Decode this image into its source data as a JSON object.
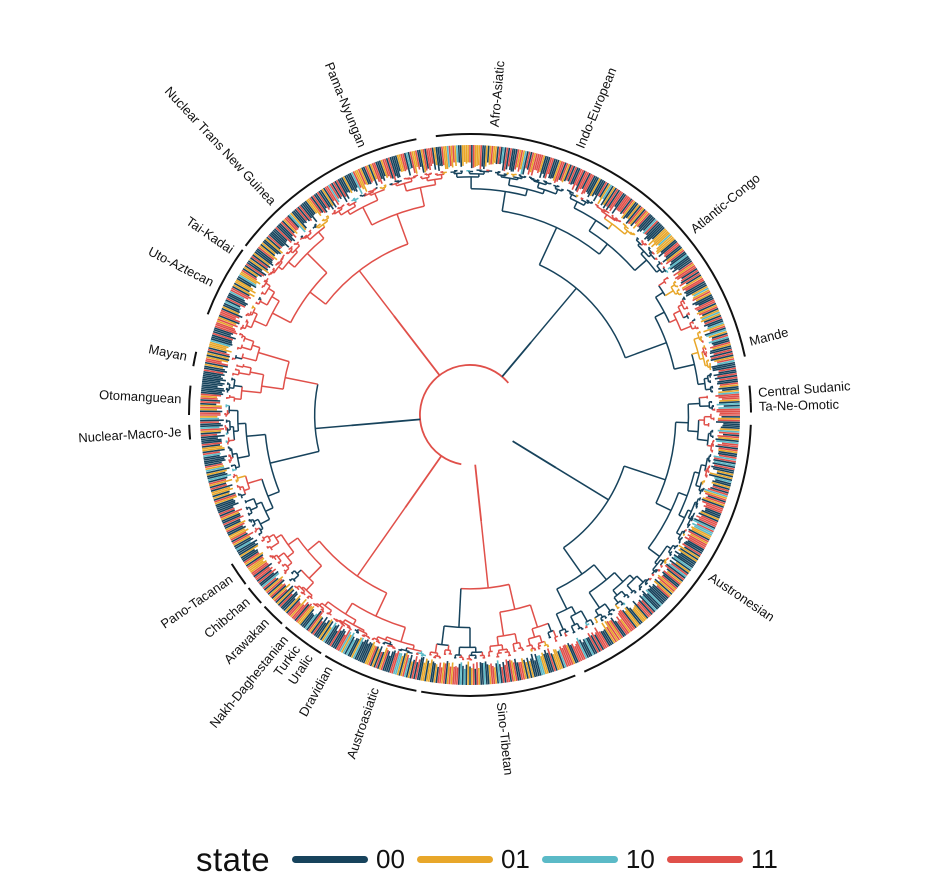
{
  "legend": {
    "title": "state",
    "items": [
      {
        "label": "00",
        "color": "#17435c"
      },
      {
        "label": "01",
        "color": "#e8a72a"
      },
      {
        "label": "10",
        "color": "#5bbac7"
      },
      {
        "label": "11",
        "color": "#e0504a"
      }
    ]
  },
  "families": [
    {
      "name": "Afro-Asiatic",
      "angle_start": 263,
      "angle_end": 287
    },
    {
      "name": "Indo-European",
      "angle_start": 287,
      "angle_end": 298
    },
    {
      "name": "Atlantic-Congo",
      "angle_start": 298,
      "angle_end": 343
    },
    {
      "name": "Mande",
      "angle_start": 343,
      "angle_end": 348
    },
    {
      "name": "Central Sudanic",
      "angle_start": 354,
      "angle_end": 357.5
    },
    {
      "name": "Ta-Ne-Omotic",
      "angle_start": 357.5,
      "angle_end": 359.5
    },
    {
      "name": "Austronesian",
      "angle_start": 2,
      "angle_end": 66
    },
    {
      "name": "Sino-Tibetan",
      "angle_start": 68,
      "angle_end": 100
    },
    {
      "name": "Austroasiatic",
      "angle_start": 101,
      "angle_end": 117
    },
    {
      "name": "Dravidian",
      "angle_start": 117,
      "angle_end": 121
    },
    {
      "name": "Uralic",
      "angle_start": 122,
      "angle_end": 125
    },
    {
      "name": "Turkic",
      "angle_start": 125,
      "angle_end": 128
    },
    {
      "name": "Nakh-Daghestanian",
      "angle_start": 128,
      "angle_end": 131
    },
    {
      "name": "Arawakan",
      "angle_start": 132,
      "angle_end": 137
    },
    {
      "name": "Chibchan",
      "angle_start": 138,
      "angle_end": 142
    },
    {
      "name": "Pano-Tacanan",
      "angle_start": 143,
      "angle_end": 148
    },
    {
      "name": "Nuclear-Macro-Je",
      "angle_start": 175,
      "angle_end": 178
    },
    {
      "name": "Otomanguean",
      "angle_start": 180,
      "angle_end": 186
    },
    {
      "name": "Mayan",
      "angle_start": 190,
      "angle_end": 193
    },
    {
      "name": "Uto-Aztecan",
      "angle_start": 201,
      "angle_end": 213
    },
    {
      "name": "Tai-Kadai",
      "angle_start": 213,
      "angle_end": 216
    },
    {
      "name": "Nuclear Trans New Guinea",
      "angle_start": 217,
      "angle_end": 237
    },
    {
      "name": "Pama-Nyungan",
      "angle_start": 237,
      "angle_end": 259
    }
  ]
}
